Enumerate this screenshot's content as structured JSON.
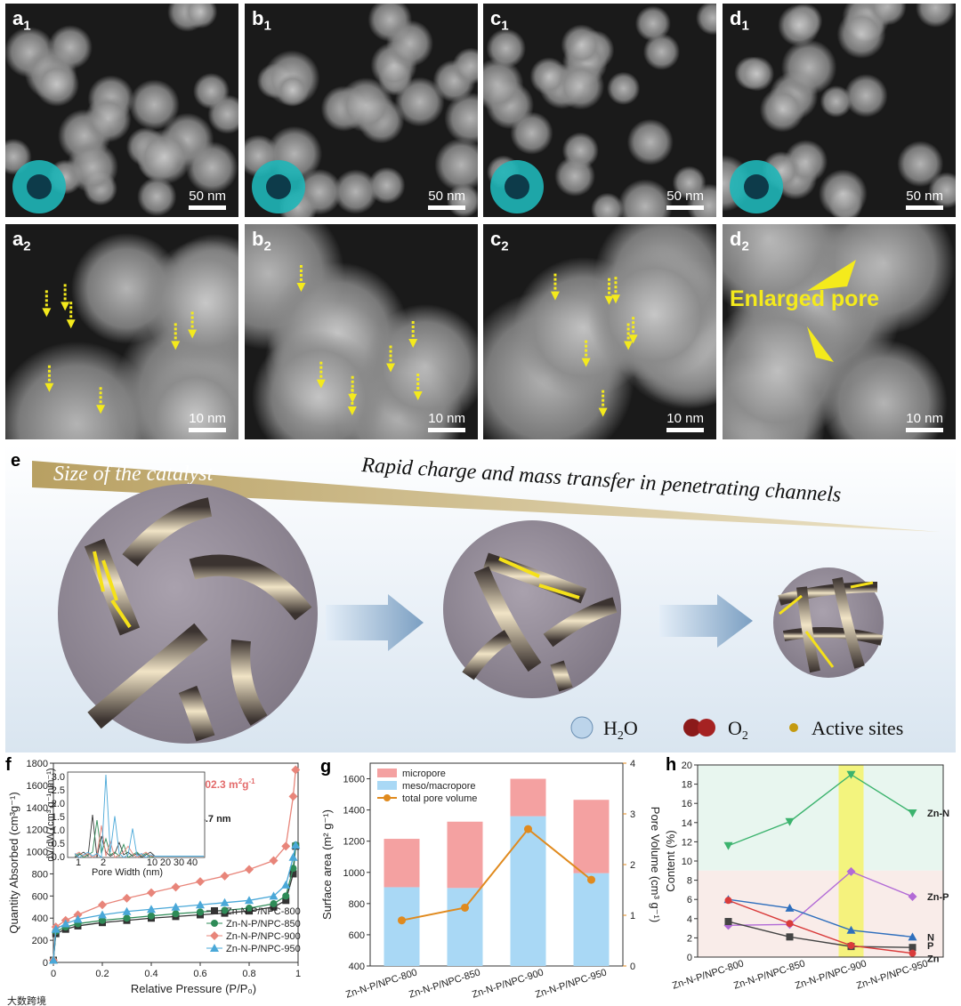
{
  "panels_top": [
    {
      "id": "a1",
      "letter": "a",
      "sub": "1",
      "scale": "50 nm"
    },
    {
      "id": "b1",
      "letter": "b",
      "sub": "1",
      "scale": "50 nm"
    },
    {
      "id": "c1",
      "letter": "c",
      "sub": "1",
      "scale": "50 nm"
    },
    {
      "id": "d1",
      "letter": "d",
      "sub": "1",
      "scale": "50 nm"
    }
  ],
  "panels_bottom": [
    {
      "id": "a2",
      "letter": "a",
      "sub": "2",
      "scale": "10 nm"
    },
    {
      "id": "b2",
      "letter": "b",
      "sub": "2",
      "scale": "10 nm"
    },
    {
      "id": "c2",
      "letter": "c",
      "sub": "2",
      "scale": "10 nm"
    },
    {
      "id": "d2",
      "letter": "d",
      "sub": "2",
      "scale": "10 nm",
      "annotation": "Enlarged pore"
    }
  ],
  "panel_e": {
    "letter": "e",
    "wedge_text": "Size of the catalyst",
    "headline": "Rapid charge and mass transfer in penetrating channels",
    "legend": {
      "h2o": "H",
      "h2o_sub": "2",
      "h2o_tail": "O",
      "o2": "O",
      "o2_sub": "2",
      "active": "Active sites"
    }
  },
  "panel_f": {
    "letter": "f",
    "ssa_label": "SSA: 1602.3 m",
    "ssa_sup1": "2",
    "ssa_g": "g",
    "ssa_sup2": "-1",
    "pore_label": "d: 2.1→4.7 nm",
    "inset_xlabel": "Pore Width (nm)",
    "inset_ylabel": "dV/dW  (cm³ g⁻¹nm⁻¹)",
    "watermark": "大数跨境"
  },
  "panel_g": {
    "letter": "g"
  },
  "panel_h": {
    "letter": "h"
  },
  "chart_data": [
    {
      "id": "f",
      "type": "line",
      "xlabel": "Relative Pressure (P/P₀)",
      "ylabel": "Quantity Absorbed (cm³g⁻¹)",
      "xlim": [
        0,
        1.0
      ],
      "ylim": [
        0,
        1800
      ],
      "xticks": [
        0,
        0.2,
        0.4,
        0.6,
        0.8,
        1.0
      ],
      "yticks": [
        0,
        200,
        400,
        600,
        800,
        1000,
        1200,
        1400,
        1600,
        1800
      ],
      "x": [
        0.0,
        0.01,
        0.05,
        0.1,
        0.2,
        0.3,
        0.4,
        0.5,
        0.6,
        0.7,
        0.8,
        0.9,
        0.95,
        0.98,
        0.99
      ],
      "series": [
        {
          "name": "Zn-N-P/NPC-800",
          "color": "#333333",
          "marker": "square",
          "values": [
            20,
            260,
            300,
            330,
            360,
            380,
            400,
            415,
            430,
            445,
            465,
            500,
            560,
            800,
            1050
          ]
        },
        {
          "name": "Zn-N-P/NPC-850",
          "color": "#2e8b57",
          "marker": "circle",
          "values": [
            20,
            280,
            320,
            350,
            380,
            400,
            420,
            440,
            455,
            470,
            490,
            530,
            600,
            850,
            1060
          ]
        },
        {
          "name": "Zn-N-P/NPC-900",
          "color": "#e8857a",
          "marker": "diamond",
          "values": [
            20,
            320,
            380,
            430,
            520,
            580,
            630,
            680,
            730,
            780,
            840,
            920,
            1050,
            1500,
            1740
          ]
        },
        {
          "name": "Zn-N-P/NPC-950",
          "color": "#4aa8d8",
          "marker": "triangle",
          "values": [
            20,
            300,
            350,
            390,
            430,
            460,
            480,
            500,
            520,
            540,
            560,
            600,
            700,
            950,
            1060
          ]
        }
      ],
      "inset": {
        "xticks": [
          1,
          2,
          10,
          20,
          30,
          40
        ],
        "yticks": [
          0.0,
          0.5,
          1.0,
          1.5,
          2.0,
          2.5,
          3.0
        ],
        "ylim": [
          0,
          3.2
        ],
        "peaks": {
          "Zn-N-P/NPC-800": 1.6,
          "Zn-N-P/NPC-850": 1.4,
          "Zn-N-P/NPC-900": 1.2,
          "Zn-N-P/NPC-950": 3.1
        }
      }
    },
    {
      "id": "g",
      "type": "bar",
      "ylabel": "Surface area (m² g⁻¹)",
      "y2label": "Pore Volume (cm³ g⁻¹)",
      "ylim": [
        400,
        1700
      ],
      "yticks": [
        400,
        600,
        800,
        1000,
        1200,
        1400,
        1600
      ],
      "y2lim": [
        0,
        4
      ],
      "y2ticks": [
        0,
        1,
        2,
        3,
        4
      ],
      "categories": [
        "Zn-N-P/NPC-800",
        "Zn-N-P/NPC-850",
        "Zn-N-P/NPC-900",
        "Zn-N-P/NPC-950"
      ],
      "series": [
        {
          "name": "micropore",
          "color": "#f4a1a1",
          "values": [
            310,
            425,
            240,
            470
          ]
        },
        {
          "name": "meso/macropore",
          "color": "#a9d8f5",
          "values": [
            905,
            900,
            1360,
            995
          ]
        },
        {
          "name": "total pore volume",
          "color": "#e08a1e",
          "axis": "y2",
          "values": [
            0.9,
            1.15,
            2.7,
            1.7
          ]
        }
      ]
    },
    {
      "id": "h",
      "type": "line",
      "ylabel": "Content (%)",
      "ylim": [
        0,
        20
      ],
      "yticks": [
        0,
        2,
        4,
        6,
        8,
        10,
        12,
        14,
        16,
        18,
        20
      ],
      "categories": [
        "Zn-N-P/NPC-800",
        "Zn-N-P/NPC-850",
        "Zn-N-P/NPC-900",
        "Zn-N-P/NPC-950"
      ],
      "highlight_index": 2,
      "series": [
        {
          "name": "Zn-N",
          "color": "#3cb36e",
          "marker": "triangle-down",
          "values": [
            11.6,
            14.1,
            19.0,
            15.0
          ]
        },
        {
          "name": "Zn-P",
          "color": "#b26ad6",
          "marker": "diamond",
          "values": [
            3.3,
            3.4,
            8.9,
            6.3
          ]
        },
        {
          "name": "N",
          "color": "#2f6fbd",
          "marker": "triangle",
          "values": [
            6.0,
            5.1,
            2.8,
            2.1
          ]
        },
        {
          "name": "P",
          "color": "#444444",
          "marker": "square",
          "values": [
            3.7,
            2.1,
            1.1,
            1.0
          ]
        },
        {
          "name": "Zn",
          "color": "#d93b3b",
          "marker": "circle",
          "values": [
            5.9,
            3.5,
            1.2,
            0.4
          ]
        }
      ]
    }
  ]
}
